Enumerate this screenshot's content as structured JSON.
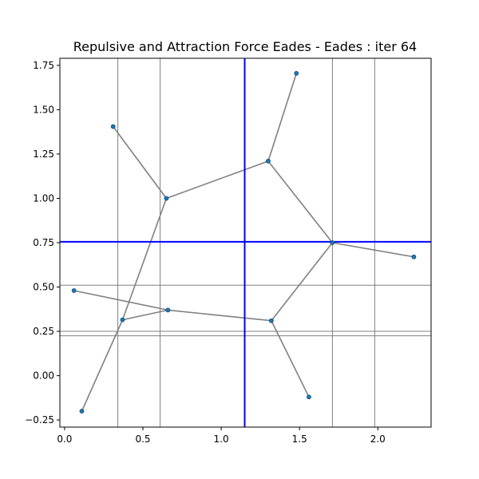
{
  "chart_data": {
    "type": "scatter",
    "title": "Repulsive and Attraction Force Eades - Eades : iter 64",
    "xlabel": "",
    "ylabel": "",
    "xlim": [
      -0.03,
      2.34
    ],
    "ylim": [
      -0.29,
      1.79
    ],
    "x_ticks": [
      0.0,
      0.5,
      1.0,
      1.5,
      2.0
    ],
    "x_tick_labels": [
      "0.0",
      "0.5",
      "1.0",
      "1.5",
      "2.0"
    ],
    "y_ticks": [
      -0.25,
      0.0,
      0.25,
      0.5,
      0.75,
      1.0,
      1.25,
      1.5,
      1.75
    ],
    "y_tick_labels": [
      "−0.25",
      "0.00",
      "0.25",
      "0.50",
      "0.75",
      "1.00",
      "1.25",
      "1.50",
      "1.75"
    ],
    "grid": {
      "vertical_x": [
        0.34,
        0.61,
        1.71,
        1.98
      ],
      "horizontal_y": [
        0.225,
        0.51,
        0.25
      ],
      "color": "#808080"
    },
    "crosshair": {
      "x": 1.15,
      "y": 0.755,
      "color": "#0000ff"
    },
    "nodes": [
      {
        "x": 0.31,
        "y": 1.405
      },
      {
        "x": 1.48,
        "y": 1.705
      },
      {
        "x": 0.65,
        "y": 1.0
      },
      {
        "x": 1.3,
        "y": 1.21
      },
      {
        "x": 1.71,
        "y": 0.75
      },
      {
        "x": 2.23,
        "y": 0.67
      },
      {
        "x": 0.06,
        "y": 0.48
      },
      {
        "x": 0.66,
        "y": 0.37
      },
      {
        "x": 0.37,
        "y": 0.315
      },
      {
        "x": 1.32,
        "y": 0.31
      },
      {
        "x": 1.56,
        "y": -0.12
      },
      {
        "x": 0.11,
        "y": -0.2
      }
    ],
    "edges": [
      [
        0,
        2
      ],
      [
        2,
        3
      ],
      [
        3,
        1
      ],
      [
        3,
        4
      ],
      [
        4,
        5
      ],
      [
        4,
        9
      ],
      [
        9,
        10
      ],
      [
        9,
        7
      ],
      [
        6,
        7
      ],
      [
        7,
        8
      ],
      [
        8,
        2
      ],
      [
        8,
        11
      ]
    ],
    "node_color": "#1f77b4",
    "edge_color": "#808080"
  }
}
